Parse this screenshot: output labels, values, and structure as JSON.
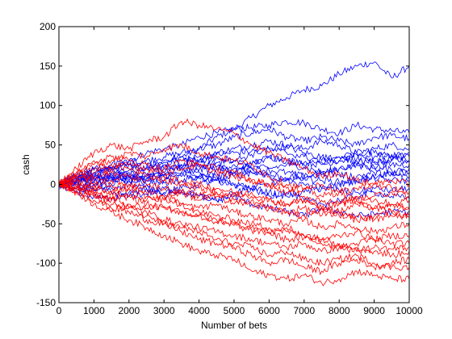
{
  "chart_data": {
    "type": "line",
    "title": "",
    "xlabel": "Number of bets",
    "ylabel": "cash",
    "xlim": [
      0,
      10000
    ],
    "ylim": [
      -150,
      200
    ],
    "xticks": [
      0,
      1000,
      2000,
      3000,
      4000,
      5000,
      6000,
      7000,
      8000,
      9000,
      10000
    ],
    "yticks": [
      -150,
      -100,
      -50,
      0,
      50,
      100,
      150,
      200
    ],
    "grid": false,
    "legend": "none",
    "colors": {
      "group_a": "#0000ff",
      "group_b": "#ff0000"
    },
    "x": [
      0,
      500,
      1000,
      1500,
      2000,
      2500,
      3000,
      3500,
      4000,
      4500,
      5000,
      5500,
      6000,
      6500,
      7000,
      7500,
      8000,
      8500,
      9000,
      9500,
      10000
    ],
    "series": [
      {
        "color": "#0000ff",
        "values": [
          0,
          10,
          8,
          15,
          12,
          20,
          25,
          35,
          45,
          60,
          70,
          85,
          100,
          110,
          120,
          125,
          140,
          150,
          155,
          135,
          150
        ]
      },
      {
        "color": "#0000ff",
        "values": [
          0,
          12,
          20,
          18,
          30,
          40,
          45,
          50,
          60,
          65,
          70,
          72,
          75,
          80,
          78,
          70,
          65,
          75,
          70,
          68,
          65
        ]
      },
      {
        "color": "#0000ff",
        "values": [
          0,
          5,
          15,
          20,
          25,
          30,
          35,
          40,
          45,
          50,
          60,
          65,
          70,
          60,
          55,
          60,
          55,
          50,
          60,
          62,
          58
        ]
      },
      {
        "color": "#0000ff",
        "values": [
          0,
          8,
          10,
          20,
          25,
          20,
          30,
          35,
          30,
          40,
          45,
          50,
          55,
          50,
          45,
          55,
          50,
          40,
          45,
          50,
          45
        ]
      },
      {
        "color": "#0000ff",
        "values": [
          0,
          3,
          5,
          12,
          18,
          22,
          28,
          30,
          35,
          38,
          40,
          42,
          45,
          48,
          40,
          35,
          30,
          38,
          40,
          36,
          35
        ]
      },
      {
        "color": "#0000ff",
        "values": [
          0,
          10,
          5,
          8,
          15,
          10,
          20,
          25,
          22,
          28,
          30,
          25,
          35,
          30,
          28,
          25,
          30,
          32,
          28,
          30,
          30
        ]
      },
      {
        "color": "#0000ff",
        "values": [
          0,
          -5,
          2,
          8,
          5,
          10,
          12,
          15,
          18,
          20,
          25,
          22,
          20,
          25,
          22,
          15,
          20,
          25,
          22,
          25,
          25
        ]
      },
      {
        "color": "#0000ff",
        "values": [
          0,
          6,
          12,
          10,
          8,
          5,
          12,
          20,
          15,
          10,
          15,
          20,
          18,
          15,
          10,
          12,
          20,
          25,
          20,
          18,
          20
        ]
      },
      {
        "color": "#0000ff",
        "values": [
          0,
          -8,
          -5,
          0,
          5,
          12,
          10,
          15,
          10,
          5,
          10,
          15,
          12,
          8,
          10,
          15,
          12,
          10,
          15,
          12,
          10
        ]
      },
      {
        "color": "#0000ff",
        "values": [
          0,
          4,
          8,
          12,
          5,
          0,
          5,
          10,
          8,
          5,
          0,
          -5,
          0,
          5,
          8,
          5,
          3,
          5,
          8,
          5,
          5
        ]
      },
      {
        "color": "#0000ff",
        "values": [
          0,
          -3,
          -8,
          -5,
          0,
          -5,
          -10,
          -5,
          0,
          5,
          0,
          -5,
          -10,
          -15,
          -10,
          -5,
          -8,
          -10,
          -5,
          -8,
          -5
        ]
      },
      {
        "color": "#0000ff",
        "values": [
          0,
          2,
          -2,
          -10,
          -15,
          -12,
          -5,
          -10,
          -15,
          -20,
          -15,
          -25,
          -30,
          -35,
          -40,
          -30,
          -35,
          -40,
          -38,
          -35,
          -35
        ]
      },
      {
        "color": "#0000ff",
        "values": [
          0,
          5,
          15,
          22,
          10,
          5,
          15,
          25,
          30,
          22,
          15,
          25,
          35,
          30,
          25,
          28,
          35,
          40,
          35,
          38,
          40
        ]
      },
      {
        "color": "#0000ff",
        "values": [
          0,
          -6,
          0,
          5,
          10,
          8,
          2,
          5,
          10,
          15,
          20,
          15,
          10,
          5,
          0,
          -5,
          0,
          5,
          10,
          15,
          15
        ]
      },
      {
        "color": "#0000ff",
        "values": [
          0,
          8,
          18,
          25,
          30,
          25,
          20,
          22,
          28,
          35,
          30,
          38,
          45,
          40,
          35,
          30,
          35,
          30,
          28,
          32,
          30
        ]
      },
      {
        "color": "#0000ff",
        "values": [
          0,
          -10,
          -15,
          -20,
          -10,
          -5,
          -12,
          -8,
          -15,
          -20,
          -12,
          -5,
          -15,
          -10,
          -20,
          -25,
          -20,
          -15,
          -10,
          -15,
          -18
        ]
      },
      {
        "color": "#ff0000",
        "values": [
          0,
          20,
          40,
          50,
          45,
          55,
          60,
          80,
          75,
          70,
          65,
          50,
          40,
          30,
          20,
          10,
          15,
          5,
          0,
          -5,
          -10
        ]
      },
      {
        "color": "#ff0000",
        "values": [
          0,
          15,
          25,
          30,
          40,
          35,
          45,
          50,
          40,
          35,
          30,
          25,
          10,
          0,
          -5,
          -15,
          -10,
          -20,
          -15,
          -10,
          -15
        ]
      },
      {
        "color": "#ff0000",
        "values": [
          0,
          10,
          15,
          20,
          25,
          20,
          15,
          20,
          25,
          15,
          10,
          5,
          0,
          -10,
          -5,
          0,
          -10,
          -5,
          0,
          5,
          0
        ]
      },
      {
        "color": "#ff0000",
        "values": [
          0,
          5,
          10,
          15,
          10,
          5,
          10,
          5,
          0,
          -5,
          -10,
          -15,
          -20,
          -25,
          -20,
          -30,
          -25,
          -20,
          -30,
          -25,
          -30
        ]
      },
      {
        "color": "#ff0000",
        "values": [
          0,
          -5,
          0,
          5,
          0,
          -10,
          -15,
          -10,
          -20,
          -15,
          -25,
          -20,
          -30,
          -35,
          -30,
          -40,
          -35,
          -40,
          -45,
          -40,
          -40
        ]
      },
      {
        "color": "#ff0000",
        "values": [
          0,
          5,
          -5,
          -10,
          -5,
          -15,
          -20,
          -25,
          -30,
          -25,
          -35,
          -40,
          -45,
          -50,
          -45,
          -55,
          -50,
          -55,
          -60,
          -55,
          -50
        ]
      },
      {
        "color": "#ff0000",
        "values": [
          0,
          -5,
          -10,
          -20,
          -15,
          -25,
          -30,
          -35,
          -40,
          -45,
          -50,
          -55,
          -60,
          -55,
          -65,
          -70,
          -65,
          -60,
          -70,
          -65,
          -65
        ]
      },
      {
        "color": "#ff0000",
        "values": [
          0,
          -10,
          -15,
          -25,
          -30,
          -35,
          -45,
          -50,
          -55,
          -60,
          -65,
          -70,
          -75,
          -80,
          -75,
          -85,
          -80,
          -75,
          -70,
          -75,
          -75
        ]
      },
      {
        "color": "#ff0000",
        "values": [
          0,
          -8,
          -20,
          -30,
          -35,
          -45,
          -50,
          -60,
          -70,
          -75,
          -80,
          -90,
          -100,
          -95,
          -105,
          -110,
          -100,
          -95,
          -105,
          -100,
          -95
        ]
      },
      {
        "color": "#ff0000",
        "values": [
          0,
          -10,
          -25,
          -35,
          -45,
          -55,
          -65,
          -75,
          -85,
          -90,
          -95,
          -110,
          -115,
          -120,
          -115,
          -125,
          -120,
          -110,
          -115,
          -120,
          -120
        ]
      },
      {
        "color": "#ff0000",
        "values": [
          0,
          -5,
          -15,
          -20,
          -30,
          -40,
          -50,
          -55,
          -60,
          -70,
          -75,
          -80,
          -90,
          -85,
          -95,
          -100,
          -95,
          -90,
          -100,
          -105,
          -105
        ]
      },
      {
        "color": "#ff0000",
        "values": [
          0,
          8,
          5,
          0,
          -5,
          0,
          -5,
          -10,
          -15,
          -10,
          -20,
          -25,
          -30,
          -35,
          -40,
          -30,
          -35,
          -25,
          -30,
          -35,
          -30
        ]
      },
      {
        "color": "#ff0000",
        "values": [
          0,
          12,
          20,
          25,
          20,
          10,
          5,
          0,
          -5,
          -10,
          -15,
          -10,
          -20,
          -25,
          -20,
          -30,
          -40,
          -45,
          -40,
          -35,
          -40
        ]
      },
      {
        "color": "#ff0000",
        "values": [
          0,
          0,
          -5,
          -10,
          -15,
          -20,
          -15,
          -25,
          -35,
          -40,
          -45,
          -50,
          -55,
          -60,
          -65,
          -70,
          -75,
          -80,
          -85,
          -90,
          -85
        ]
      },
      {
        "color": "#ff0000",
        "values": [
          0,
          15,
          30,
          35,
          30,
          25,
          20,
          30,
          25,
          20,
          15,
          5,
          0,
          -5,
          -15,
          -20,
          -25,
          -15,
          -20,
          -25,
          -20
        ]
      },
      {
        "color": "#ff0000",
        "values": [
          0,
          -3,
          -12,
          -18,
          -25,
          -30,
          -28,
          -35,
          -40,
          -48,
          -52,
          -58,
          -62,
          -70,
          -68,
          -75,
          -78,
          -85,
          -80,
          -82,
          -80
        ]
      }
    ]
  }
}
